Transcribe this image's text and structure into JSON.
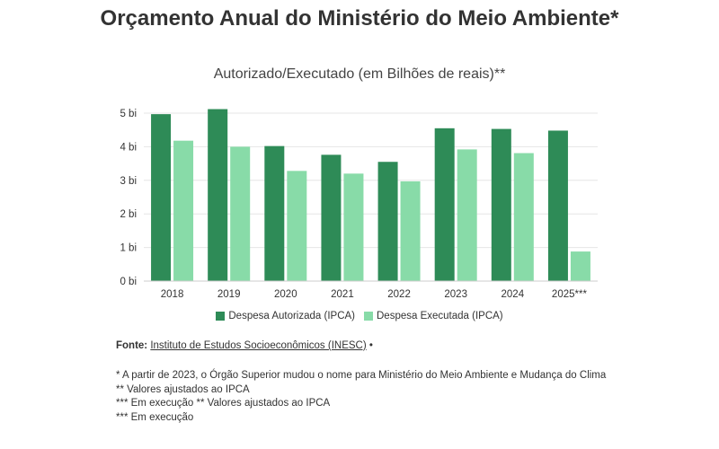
{
  "title": "Orçamento Anual do Ministério do Meio Ambiente*",
  "subtitle": "Autorizado/Executado (em Bilhões de reais)**",
  "chart_data": {
    "type": "bar",
    "categories": [
      "2018",
      "2019",
      "2020",
      "2021",
      "2022",
      "2023",
      "2024",
      "2025***"
    ],
    "series": [
      {
        "name": "Despesa Autorizada (IPCA)",
        "color": "#2e8b57",
        "values": [
          4.97,
          5.12,
          4.02,
          3.76,
          3.55,
          4.55,
          4.53,
          4.48
        ]
      },
      {
        "name": "Despesa Executada (IPCA)",
        "color": "#88dba8",
        "values": [
          4.18,
          4.0,
          3.28,
          3.2,
          2.97,
          3.92,
          3.81,
          0.88
        ]
      }
    ],
    "ylim": [
      0,
      5
    ],
    "yticks": [
      0,
      1,
      2,
      3,
      4,
      5
    ],
    "ytick_labels": [
      "0 bi",
      "1 bi",
      "2 bi",
      "3 bi",
      "4 bi",
      "5 bi"
    ],
    "grid": true,
    "legend": "bottom"
  },
  "source": {
    "label": "Fonte:",
    "link_text": "Instituto de Estudos Socioeconômicos (INESC)",
    "trail": "•"
  },
  "notes": [
    "* A partir de 2023, o Órgão Superior mudou o nome para Ministério do Meio Ambiente e Mudança do Clima",
    "** Valores ajustados ao IPCA",
    "*** Em execução ** Valores ajustados ao IPCA",
    "*** Em execução"
  ]
}
